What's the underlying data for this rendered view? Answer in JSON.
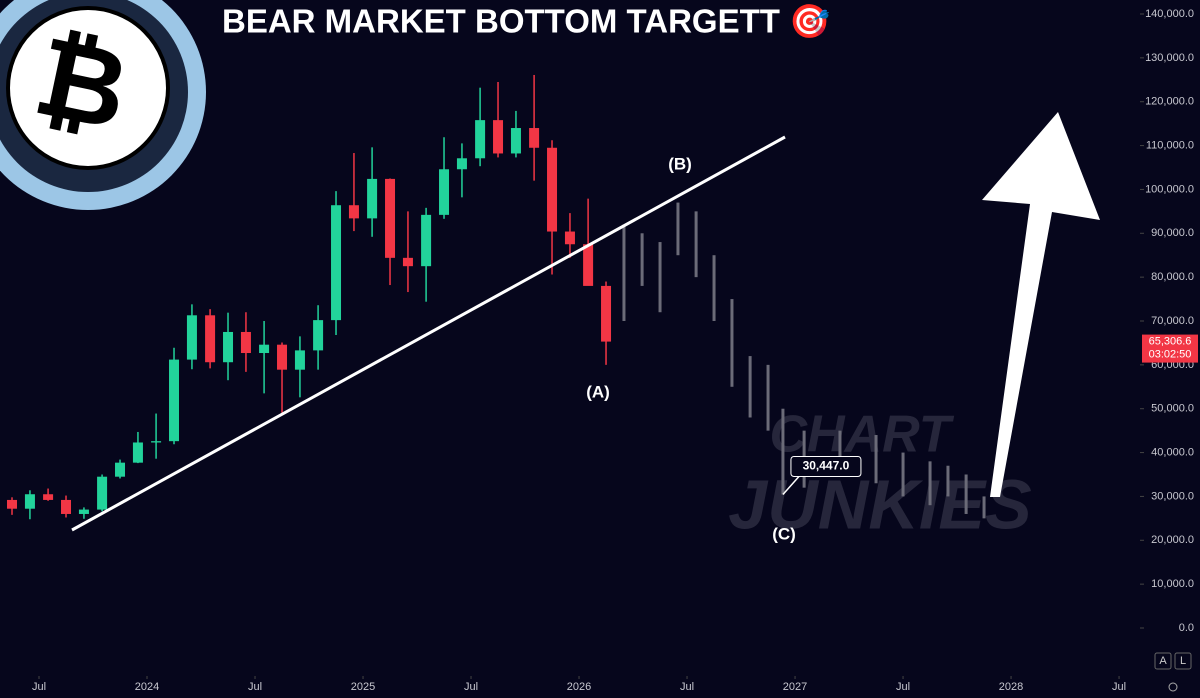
{
  "chart_data": {
    "type": "candlestick",
    "title": "BEAR MARKET BOTTOM TARGETT 🎯",
    "watermark": [
      "CHART",
      "JUNKIES"
    ],
    "candles": {
      "x": [
        2023.375,
        2023.458,
        2023.542,
        2023.625,
        2023.708,
        2023.792,
        2023.875,
        2023.958,
        2024.042,
        2024.125,
        2024.208,
        2024.292,
        2024.375,
        2024.458,
        2024.542,
        2024.625,
        2024.708,
        2024.792,
        2024.875,
        2024.958,
        2025.042,
        2025.125,
        2025.208,
        2025.292,
        2025.375,
        2025.458,
        2025.542,
        2025.625,
        2025.708,
        2025.792,
        2025.875,
        2025.958,
        2026.042,
        2026.125
      ],
      "open": [
        29200,
        27200,
        30500,
        29200,
        26000,
        27000,
        34500,
        37700,
        42300,
        42600,
        61200,
        71300,
        60600,
        67500,
        62700,
        64600,
        58900,
        63300,
        70200,
        96400,
        93400,
        102400,
        84400,
        82500,
        94200,
        104600,
        107100,
        115800,
        108200,
        114000,
        109500,
        90400,
        87500,
        78000
      ],
      "high": [
        29800,
        31400,
        31800,
        30200,
        27500,
        35000,
        38400,
        44700,
        48900,
        63900,
        73800,
        72700,
        71900,
        72000,
        70000,
        65100,
        66500,
        73600,
        99600,
        108300,
        109600,
        102500,
        95000,
        95800,
        111900,
        110500,
        123200,
        124500,
        117900,
        126100,
        111200,
        94600,
        97900,
        79000
      ],
      "low": [
        25800,
        24800,
        29000,
        25200,
        24900,
        26600,
        34100,
        37600,
        38600,
        41900,
        59000,
        59200,
        56500,
        58400,
        53500,
        49100,
        52600,
        58900,
        66800,
        90500,
        89200,
        78200,
        76600,
        74400,
        93300,
        98200,
        105300,
        107300,
        107300,
        102000,
        80600,
        84400,
        80000,
        60000
      ],
      "close": [
        27200,
        30500,
        29200,
        26000,
        27000,
        34500,
        37700,
        42300,
        42600,
        61200,
        71300,
        60600,
        67500,
        62700,
        64600,
        58900,
        63300,
        70200,
        96400,
        93400,
        102400,
        84400,
        82500,
        94200,
        104600,
        107100,
        115800,
        108200,
        114000,
        109500,
        90400,
        87500,
        78000,
        65306.6
      ],
      "up_color": "#22d39b",
      "down_color": "#f23645"
    },
    "projection": {
      "x": [
        2026.208,
        2026.292,
        2026.375,
        2026.458,
        2026.542,
        2026.625,
        2026.708,
        2026.792,
        2026.875,
        2026.944,
        2027.042,
        2027.208,
        2027.375,
        2027.5,
        2027.625,
        2027.708,
        2027.792,
        2027.875
      ],
      "high": [
        92000,
        90000,
        88000,
        97000,
        95000,
        85000,
        75000,
        62000,
        60000,
        50000,
        45000,
        45000,
        44000,
        40000,
        38000,
        37000,
        35000,
        30000
      ],
      "low": [
        70000,
        78000,
        72000,
        85000,
        80000,
        70000,
        55000,
        48000,
        45000,
        30447,
        32000,
        35000,
        33000,
        30000,
        28000,
        30000,
        26000,
        25000
      ],
      "color": "#6b6b78"
    },
    "annotations": {
      "a": "(A)",
      "b": "(B)",
      "c": "(C)",
      "target": {
        "value": 30447,
        "label": "30,447.0"
      }
    },
    "last_price": {
      "value": 65306.6,
      "label": "65,306.6"
    },
    "countdown": "03:02:50",
    "xlim": [
      2023.3194,
      2028.597
    ],
    "xticks": [
      {
        "value": 2023.5,
        "label": "Jul"
      },
      {
        "value": 2024,
        "label": "2024"
      },
      {
        "value": 2024.5,
        "label": "Jul"
      },
      {
        "value": 2025,
        "label": "2025"
      },
      {
        "value": 2025.5,
        "label": "Jul"
      },
      {
        "value": 2026,
        "label": "2026"
      },
      {
        "value": 2026.5,
        "label": "Jul"
      },
      {
        "value": 2027,
        "label": "2027"
      },
      {
        "value": 2027.5,
        "label": "Jul"
      },
      {
        "value": 2028,
        "label": "2028"
      },
      {
        "value": 2028.5,
        "label": "Jul"
      }
    ],
    "ylim": [
      0,
      140000
    ],
    "yticks": [
      {
        "value": 0,
        "label": "0.0"
      },
      {
        "value": 10000,
        "label": "10,000.0"
      },
      {
        "value": 20000,
        "label": "20,000.0"
      },
      {
        "value": 30000,
        "label": "30,000.0"
      },
      {
        "value": 40000,
        "label": "40,000.0"
      },
      {
        "value": 50000,
        "label": "50,000.0"
      },
      {
        "value": 60000,
        "label": "60,000.0"
      },
      {
        "value": 70000,
        "label": "70,000.0"
      },
      {
        "value": 80000,
        "label": "80,000.0"
      },
      {
        "value": 90000,
        "label": "90,000.0"
      },
      {
        "value": 100000,
        "label": "100,000.0"
      },
      {
        "value": 110000,
        "label": "110,000.0"
      },
      {
        "value": 120000,
        "label": "120,000.0"
      },
      {
        "value": 130000,
        "label": "130,000.0"
      },
      {
        "value": 140000,
        "label": "140,000.0"
      }
    ],
    "buttons": [
      "A",
      "L"
    ]
  }
}
